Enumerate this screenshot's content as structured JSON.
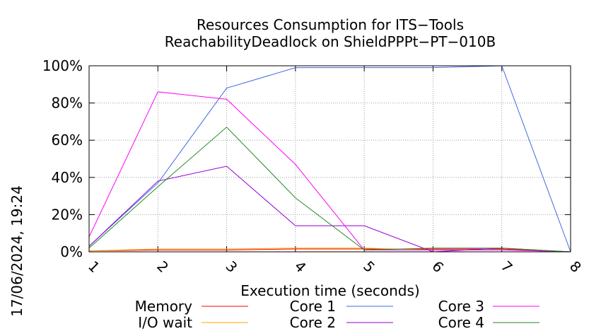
{
  "chart_data": {
    "type": "line",
    "title": "Resources Consumption for ITS−Tools",
    "subtitle": "ReachabilityDeadlock on ShieldPPPt−PT−010B",
    "xlabel": "Execution time (seconds)",
    "ylabel": "",
    "side_label": "17/06/2024, 19:24",
    "xlim": [
      1,
      8
    ],
    "ylim": [
      0,
      100
    ],
    "x_ticks": [
      "1",
      "2",
      "3",
      "4",
      "5",
      "6",
      "7",
      "8"
    ],
    "y_ticks": [
      "0%",
      "20%",
      "40%",
      "60%",
      "80%",
      "100%"
    ],
    "grid": true,
    "legend_position": "bottom",
    "x": [
      1,
      2,
      3,
      4,
      5,
      6,
      7,
      8
    ],
    "series": [
      {
        "name": "Memory",
        "color": "#ff0000",
        "values": [
          0.5,
          1,
          1,
          1.5,
          1.5,
          1.5,
          1.5,
          0
        ]
      },
      {
        "name": "I/O wait",
        "color": "#ffa500",
        "values": [
          0.5,
          1.5,
          1.5,
          2,
          2,
          1,
          1,
          0
        ]
      },
      {
        "name": "Core 1",
        "color": "#4169e1",
        "values": [
          3,
          37,
          88,
          99,
          99,
          99,
          100,
          0
        ]
      },
      {
        "name": "Core 2",
        "color": "#9400d3",
        "values": [
          3,
          38,
          46,
          14,
          14,
          0,
          2,
          0
        ]
      },
      {
        "name": "Core 3",
        "color": "#ff00ff",
        "values": [
          8,
          86,
          82,
          47,
          1,
          1,
          1,
          0
        ]
      },
      {
        "name": "Core 4",
        "color": "#228b22",
        "values": [
          2,
          35,
          67,
          29,
          1,
          2,
          2,
          0
        ]
      }
    ]
  }
}
